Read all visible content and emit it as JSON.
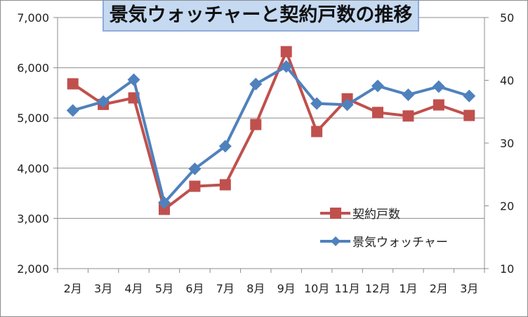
{
  "chart_data": {
    "type": "line",
    "title": "景気ウォッチャーと契約戸数の推移",
    "categories": [
      "2月",
      "3月",
      "4月",
      "5月",
      "6月",
      "7月",
      "8月",
      "9月",
      "10月",
      "11月",
      "12月",
      "1月",
      "2月",
      "3月"
    ],
    "y_left": {
      "min": 2000,
      "max": 7000,
      "step": 1000,
      "ticks": [
        "2,000",
        "3,000",
        "4,000",
        "5,000",
        "6,000",
        "7,000"
      ]
    },
    "y_right": {
      "min": 10,
      "max": 50,
      "step": 10,
      "ticks": [
        "10",
        "20",
        "30",
        "40",
        "50"
      ]
    },
    "grid": true,
    "legend_position": "bottom-right-inside",
    "series": [
      {
        "name": "契約戸数",
        "axis": "left",
        "color": "#c0504d",
        "marker": "square",
        "values": [
          5680,
          5270,
          5400,
          3180,
          3640,
          3670,
          4870,
          6320,
          4730,
          5380,
          5110,
          5040,
          5260,
          5050
        ]
      },
      {
        "name": "景気ウォッチャー",
        "axis": "right",
        "color": "#4f81bd",
        "marker": "diamond",
        "values": [
          35.2,
          36.6,
          40.1,
          20.5,
          25.9,
          29.5,
          39.4,
          42.2,
          36.3,
          36.1,
          39.1,
          37.7,
          39.0,
          37.5
        ]
      }
    ]
  }
}
